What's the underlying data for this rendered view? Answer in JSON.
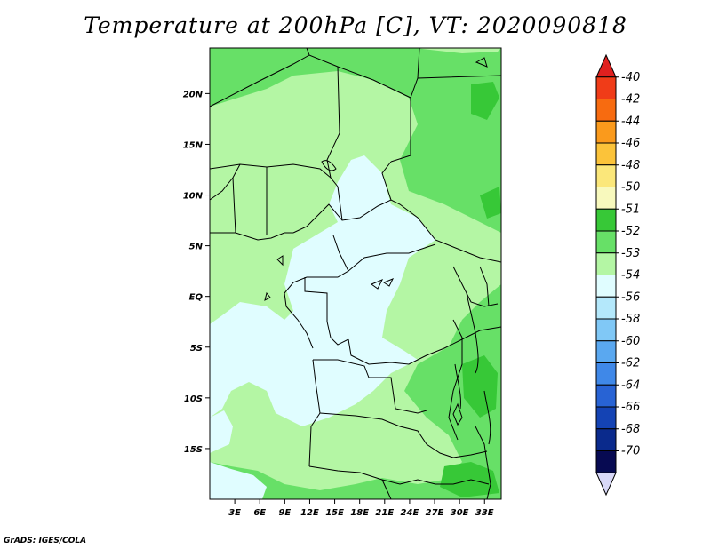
{
  "title": "Temperature at 200hPa [C], VT: 2020090818",
  "credit": "GrADS: IGES/COLA",
  "y_axis": {
    "ticks": [
      "20N",
      "15N",
      "10N",
      "5N",
      "EQ",
      "5S",
      "10S",
      "15S"
    ],
    "values": [
      20,
      15,
      10,
      5,
      0,
      -5,
      -10,
      -15
    ],
    "range": [
      -20,
      24.5
    ]
  },
  "x_axis": {
    "ticks": [
      "3E",
      "6E",
      "9E",
      "12E",
      "15E",
      "18E",
      "21E",
      "24E",
      "27E",
      "30E",
      "33E"
    ],
    "values": [
      3,
      6,
      9,
      12,
      15,
      18,
      21,
      24,
      27,
      30,
      33
    ],
    "range": [
      0,
      35
    ]
  },
  "colorbar": {
    "labels": [
      "-40",
      "-42",
      "-44",
      "-46",
      "-48",
      "-50",
      "-51",
      "-52",
      "-53",
      "-54",
      "-56",
      "-58",
      "-60",
      "-62",
      "-64",
      "-66",
      "-68",
      "-70"
    ],
    "colors": [
      "#e0201f",
      "#f03c18",
      "#f76b10",
      "#fa9a1c",
      "#fbc33a",
      "#fbe77a",
      "#f8f9bd",
      "#37c837",
      "#67e067",
      "#b4f6a4",
      "#e0fdff",
      "#b4e8fb",
      "#80c8f6",
      "#5aa8f0",
      "#3f88e8",
      "#2863d4",
      "#1443b4",
      "#0a2a8c",
      "#070a52",
      "#d8d8f8"
    ]
  },
  "legend_colors": {
    "c51": "#37c837",
    "c52": "#67e067",
    "c53": "#b4f6a4",
    "c54": "#e0fdff"
  }
}
